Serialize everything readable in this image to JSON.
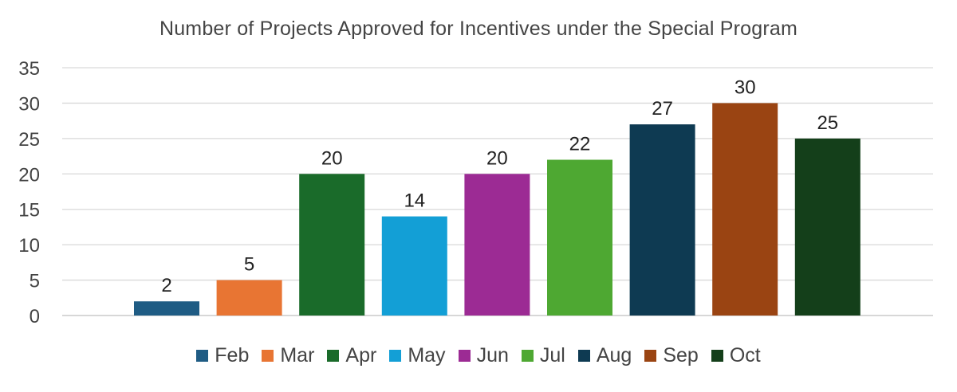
{
  "chart_data": {
    "type": "bar",
    "title": "Number of Projects Approved for Incentives under the Special Program",
    "xlabel": "",
    "ylabel": "",
    "categories": [
      "Feb",
      "Mar",
      "Apr",
      "May",
      "Jun",
      "Jul",
      "Aug",
      "Sep",
      "Oct"
    ],
    "values": [
      2,
      5,
      20,
      14,
      20,
      22,
      27,
      30,
      25
    ],
    "colors": [
      "#1f5c84",
      "#e87533",
      "#1a6b2a",
      "#139fd6",
      "#9c2b94",
      "#4ea832",
      "#0e3a52",
      "#9a4412",
      "#143f1a"
    ],
    "ylim": [
      0,
      35
    ],
    "yticks": [
      0,
      5,
      10,
      15,
      20,
      25,
      30,
      35
    ],
    "grid": true,
    "legend": "bottom",
    "data_labels": true
  }
}
